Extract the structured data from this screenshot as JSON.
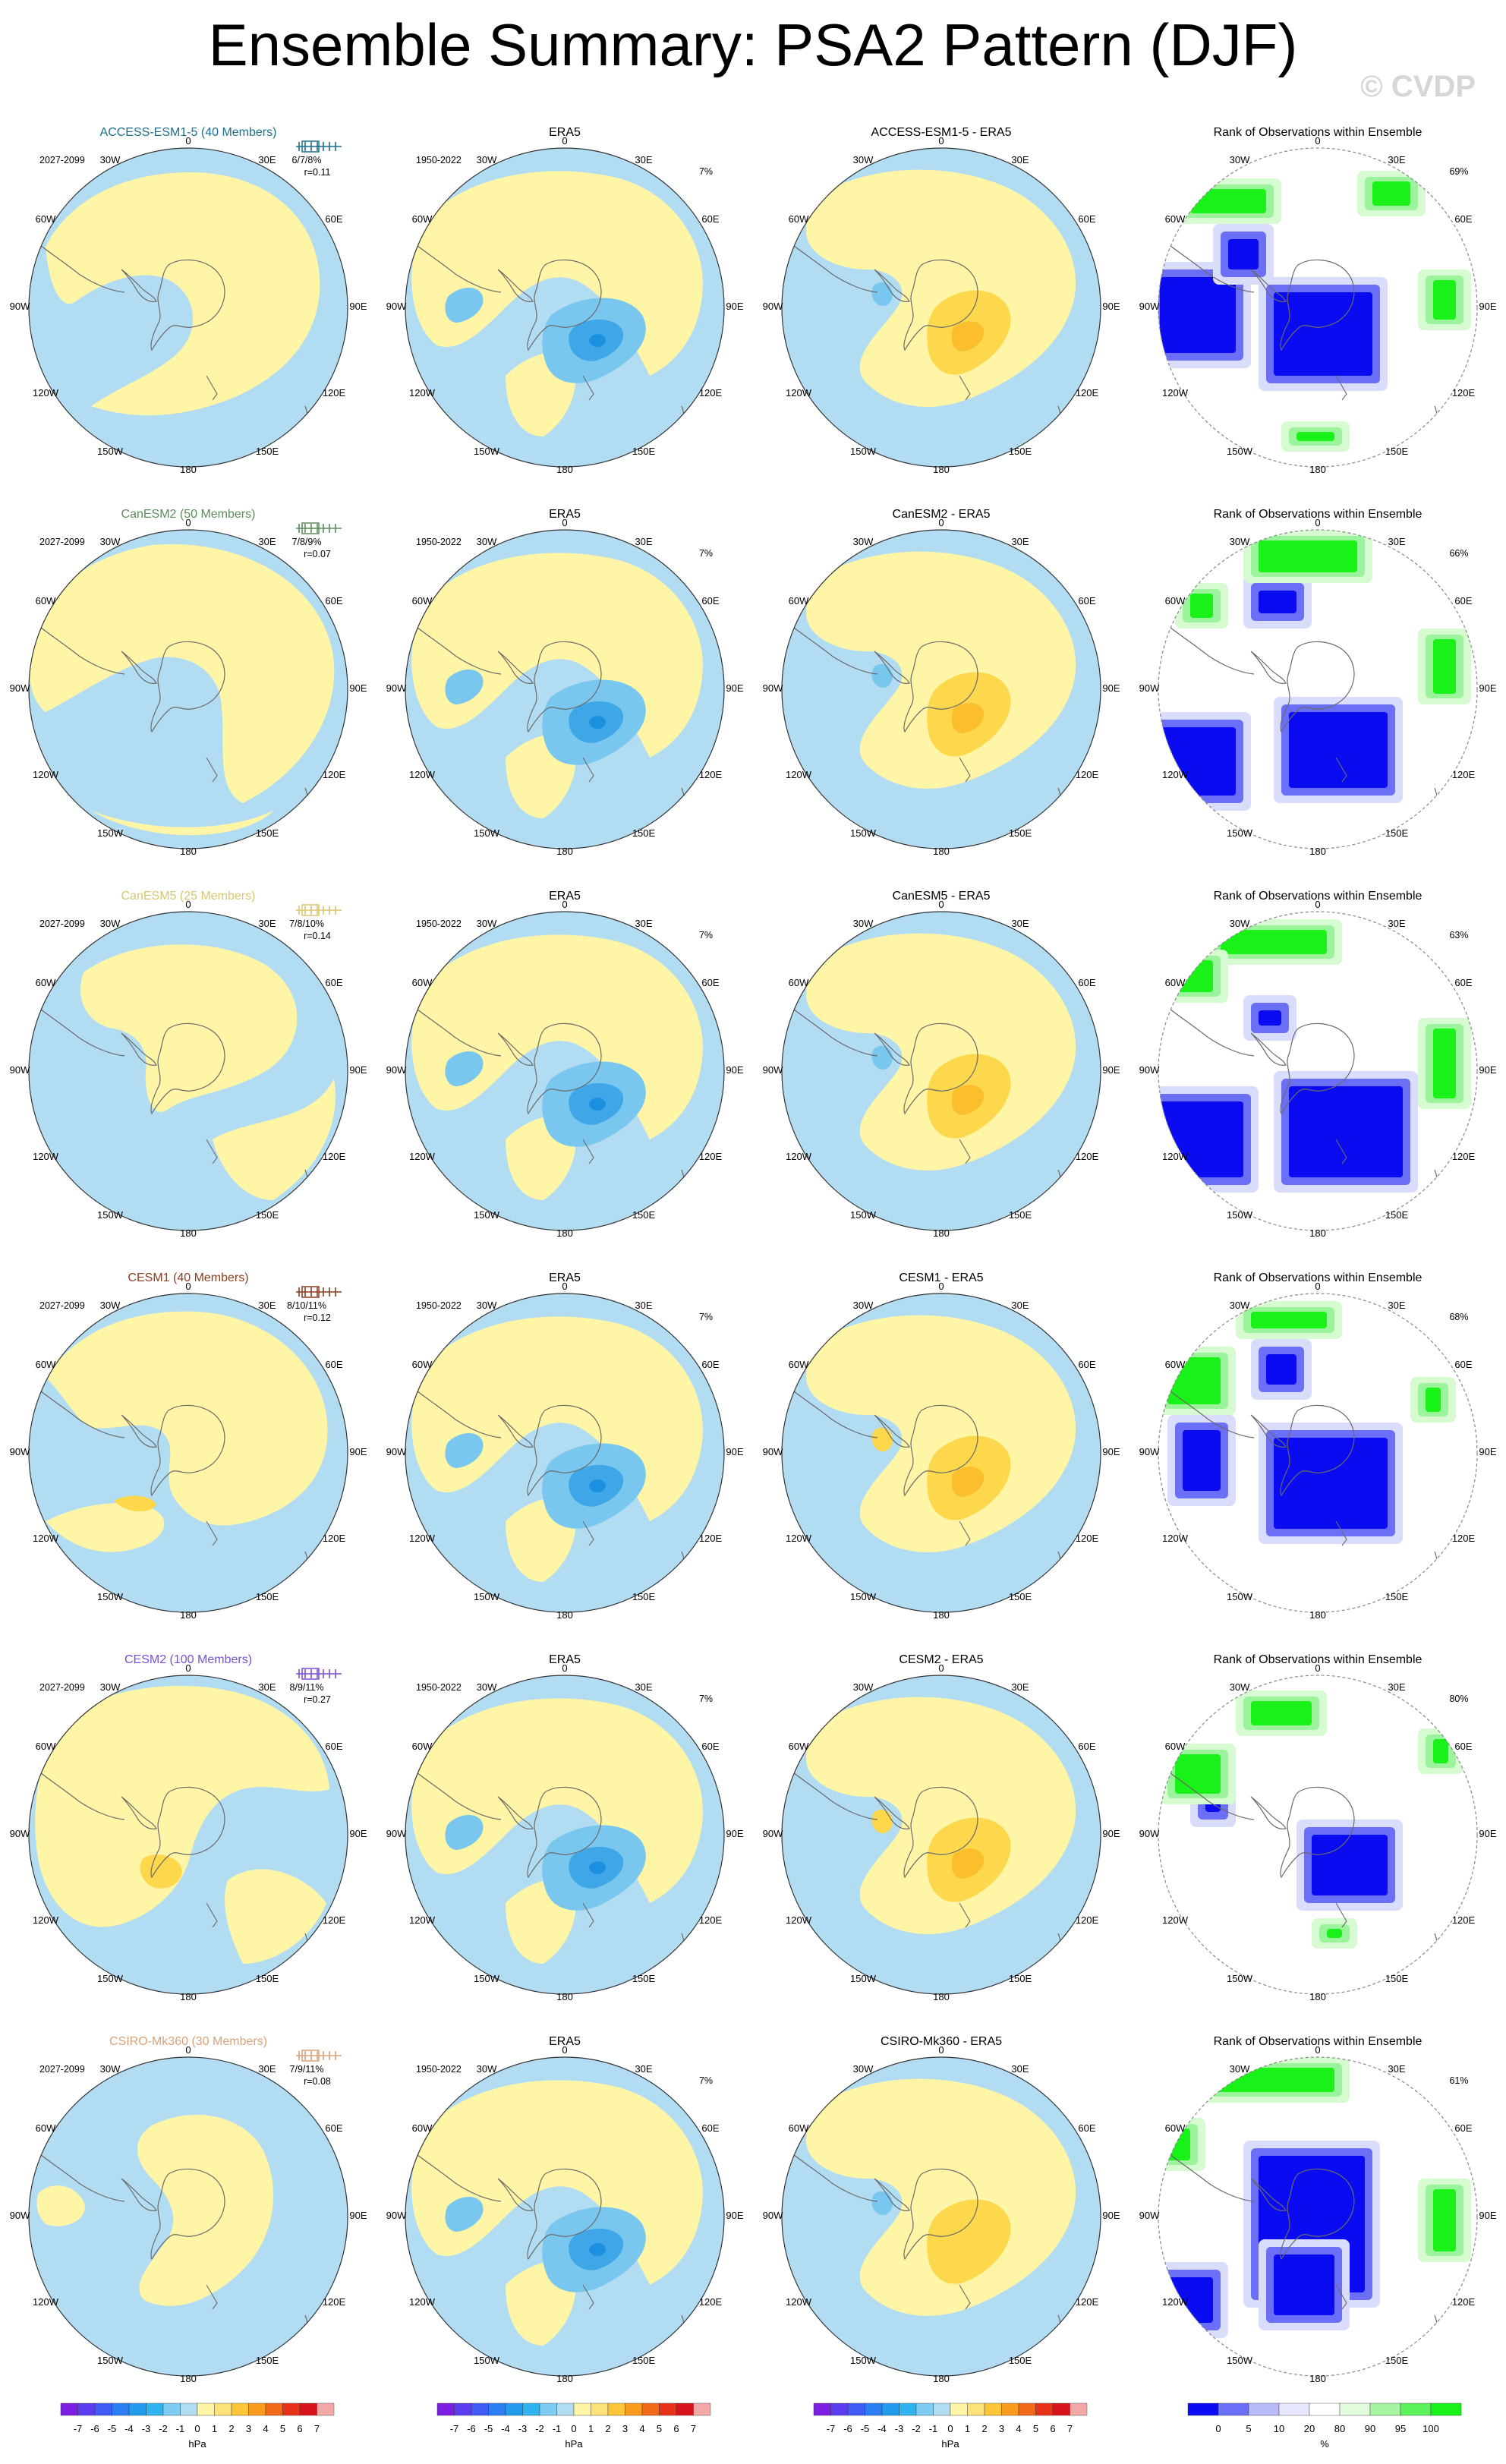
{
  "title": "Ensemble Summary: PSA2 Pattern (DJF)",
  "copyright": "© CVDP",
  "colors": {
    "ocean": "#b2dcf2",
    "land": "#fef5a7",
    "pos2": "#fdd84d",
    "pos3": "#fbbf2e",
    "pos4": "#f59620",
    "neg2": "#79c7ef",
    "neg3": "#3fa7e8",
    "neg4": "#1b8fe0",
    "rank_low1": "#0b0bf2",
    "rank_low2": "#6a6ff5",
    "rank_low3": "#dadcfb",
    "rank_high1": "#d7fbd1",
    "rank_high2": "#9bf39b",
    "rank_high3": "#18f218"
  },
  "axis_labels": {
    "lat_top": "0",
    "l30w": "30W",
    "l30e": "30E",
    "l60w": "60W",
    "l60e": "60E",
    "l90w": "90W",
    "l90e": "90E",
    "l120w": "120W",
    "l120e": "120E",
    "l150w": "150W",
    "l150e": "150E",
    "l180": "180"
  },
  "rows": [
    {
      "model": "ACCESS-ESM1-5 (40 Members)",
      "model_color": "#1c6e8c",
      "future_period": "2027-2099",
      "pct": "6/7/8%",
      "r": "r=0.11",
      "era_title": "ERA5",
      "era_period": "1950-2022",
      "era_pct": "7%",
      "diff_title": "ACCESS-ESM1-5 - ERA5",
      "rank_title": "Rank of Observations within Ensemble",
      "rank_pct": "69%"
    },
    {
      "model": "CanESM2 (50 Members)",
      "model_color": "#5b8a5b",
      "future_period": "2027-2099",
      "pct": "7/8/9%",
      "r": "r=0.07",
      "era_title": "ERA5",
      "era_period": "1950-2022",
      "era_pct": "7%",
      "diff_title": "CanESM2 - ERA5",
      "rank_title": "Rank of Observations within Ensemble",
      "rank_pct": "66%"
    },
    {
      "model": "CanESM5 (25 Members)",
      "model_color": "#d8c670",
      "future_period": "2027-2099",
      "pct": "7/8/10%",
      "r": "r=0.14",
      "era_title": "ERA5",
      "era_period": "1950-2022",
      "era_pct": "7%",
      "diff_title": "CanESM5 - ERA5",
      "rank_title": "Rank of Observations within Ensemble",
      "rank_pct": "63%"
    },
    {
      "model": "CESM1 (40 Members)",
      "model_color": "#8b3d1c",
      "future_period": "2027-2099",
      "pct": "8/10/11%",
      "r": "r=0.12",
      "era_title": "ERA5",
      "era_period": "1950-2022",
      "era_pct": "7%",
      "diff_title": "CESM1 - ERA5",
      "rank_title": "Rank of Observations within Ensemble",
      "rank_pct": "68%"
    },
    {
      "model": "CESM2 (100 Members)",
      "model_color": "#7b4fd8",
      "future_period": "2027-2099",
      "pct": "8/9/11%",
      "r": "r=0.27",
      "era_title": "ERA5",
      "era_period": "1950-2022",
      "era_pct": "7%",
      "diff_title": "CESM2 - ERA5",
      "rank_title": "Rank of Observations within Ensemble",
      "rank_pct": "80%"
    },
    {
      "model": "CSIRO-Mk360 (30 Members)",
      "model_color": "#d9a27a",
      "future_period": "2027-2099",
      "pct": "7/9/11%",
      "r": "r=0.08",
      "era_title": "ERA5",
      "era_period": "1950-2022",
      "era_pct": "7%",
      "diff_title": "CSIRO-Mk360 - ERA5",
      "rank_title": "Rank of Observations within Ensemble",
      "rank_pct": "61%"
    }
  ],
  "hpa_colorbar": {
    "unit": "hPa",
    "ticks": [
      "-7",
      "-6",
      "-5",
      "-4",
      "-3",
      "-2",
      "-1",
      "0",
      "1",
      "2",
      "3",
      "4",
      "5",
      "6",
      "7"
    ],
    "colors": [
      "#7b1fe0",
      "#5a3df0",
      "#3f5cf5",
      "#2f7df2",
      "#249cee",
      "#2fb4ef",
      "#7dcdf3",
      "#b2dcf2",
      "#fef5a7",
      "#fde27a",
      "#fdc53a",
      "#f99b1f",
      "#f06a18",
      "#e8331a",
      "#d4131a",
      "#f3a8a8"
    ]
  },
  "rank_colorbar": {
    "unit": "%",
    "ticks": [
      "0",
      "5",
      "10",
      "20",
      "80",
      "90",
      "95",
      "100"
    ],
    "colors": [
      "#0b0bf2",
      "#6a6ff5",
      "#b8bbf8",
      "#e6e7fc",
      "#ffffff",
      "#e3fbdd",
      "#a6f5a1",
      "#5bf25b",
      "#18f218"
    ]
  }
}
